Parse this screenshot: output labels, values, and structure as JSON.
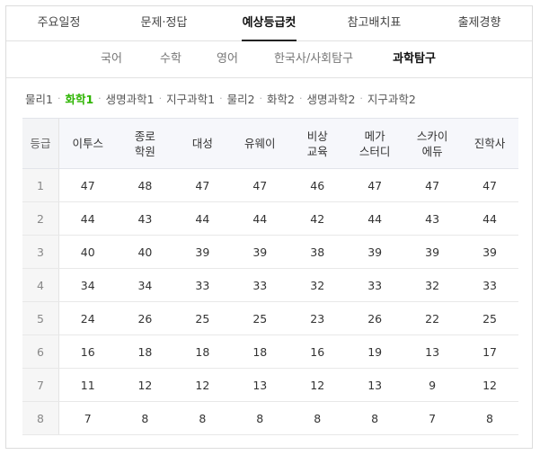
{
  "main_tabs": [
    {
      "label": "주요일정",
      "active": false
    },
    {
      "label": "문제·정답",
      "active": false
    },
    {
      "label": "예상등급컷",
      "active": true
    },
    {
      "label": "참고배치표",
      "active": false
    },
    {
      "label": "출제경향",
      "active": false
    }
  ],
  "sub_tabs": [
    {
      "label": "국어",
      "active": false
    },
    {
      "label": "수학",
      "active": false
    },
    {
      "label": "영어",
      "active": false
    },
    {
      "label": "한국사/사회탐구",
      "active": false
    },
    {
      "label": "과학탐구",
      "active": true
    }
  ],
  "subjects": [
    {
      "label": "물리1",
      "active": false
    },
    {
      "label": "화학1",
      "active": true
    },
    {
      "label": "생명과학1",
      "active": false
    },
    {
      "label": "지구과학1",
      "active": false
    },
    {
      "label": "물리2",
      "active": false
    },
    {
      "label": "화학2",
      "active": false
    },
    {
      "label": "생명과학2",
      "active": false
    },
    {
      "label": "지구과학2",
      "active": false
    }
  ],
  "separator": "·",
  "accent_color": "#2db400",
  "table": {
    "grade_header": "등급",
    "columns": [
      [
        "이투스"
      ],
      [
        "종로",
        "학원"
      ],
      [
        "대성"
      ],
      [
        "유웨이"
      ],
      [
        "비상",
        "교육"
      ],
      [
        "메가",
        "스터디"
      ],
      [
        "스카이",
        "에듀"
      ],
      [
        "진학사"
      ]
    ],
    "rows": [
      {
        "grade": "1",
        "values": [
          "47",
          "48",
          "47",
          "47",
          "46",
          "47",
          "47",
          "47"
        ]
      },
      {
        "grade": "2",
        "values": [
          "44",
          "43",
          "44",
          "44",
          "42",
          "44",
          "43",
          "44"
        ]
      },
      {
        "grade": "3",
        "values": [
          "40",
          "40",
          "39",
          "39",
          "38",
          "39",
          "39",
          "39"
        ]
      },
      {
        "grade": "4",
        "values": [
          "34",
          "34",
          "33",
          "33",
          "32",
          "33",
          "32",
          "33"
        ]
      },
      {
        "grade": "5",
        "values": [
          "24",
          "26",
          "25",
          "25",
          "23",
          "26",
          "22",
          "25"
        ]
      },
      {
        "grade": "6",
        "values": [
          "16",
          "18",
          "18",
          "18",
          "16",
          "19",
          "13",
          "17"
        ]
      },
      {
        "grade": "7",
        "values": [
          "11",
          "12",
          "12",
          "13",
          "12",
          "13",
          "9",
          "12"
        ]
      },
      {
        "grade": "8",
        "values": [
          "7",
          "8",
          "8",
          "8",
          "8",
          "8",
          "7",
          "8"
        ]
      }
    ]
  }
}
